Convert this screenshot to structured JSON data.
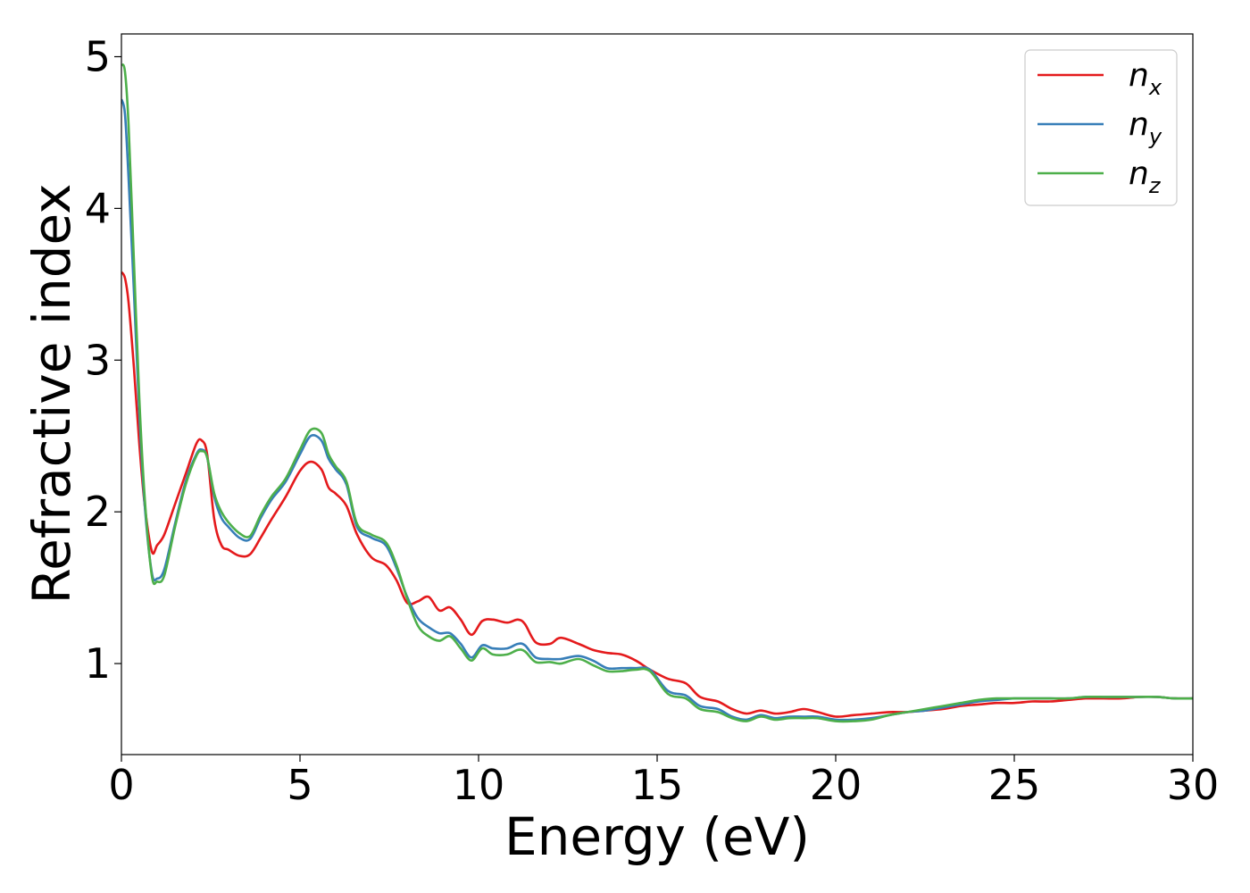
{
  "chart_data": {
    "type": "line",
    "xlabel": "Energy (eV)",
    "ylabel": "Refractive index",
    "xlim": [
      0,
      30
    ],
    "ylim": [
      0.4,
      5.15
    ],
    "xticks": [
      0,
      5,
      10,
      15,
      20,
      25,
      30
    ],
    "yticks": [
      1,
      2,
      3,
      4,
      5
    ],
    "grid": false,
    "legend_position": "top-right",
    "series": [
      {
        "name": "n",
        "subscript": "x",
        "color": "#e41a1c",
        "x": [
          0,
          0.1,
          0.2,
          0.35,
          0.5,
          0.65,
          0.85,
          1.0,
          1.2,
          1.5,
          1.8,
          2.1,
          2.25,
          2.4,
          2.6,
          2.8,
          3.0,
          3.3,
          3.6,
          3.9,
          4.2,
          4.6,
          5.0,
          5.3,
          5.6,
          5.8,
          6.0,
          6.3,
          6.6,
          7.0,
          7.4,
          7.7,
          8.0,
          8.3,
          8.6,
          8.9,
          9.2,
          9.5,
          9.8,
          10.1,
          10.4,
          10.8,
          11.1,
          11.3,
          11.6,
          12.0,
          12.3,
          12.8,
          13.2,
          13.6,
          14.0,
          14.4,
          14.8,
          15.3,
          15.8,
          16.2,
          16.7,
          17.1,
          17.5,
          17.9,
          18.3,
          18.7,
          19.1,
          19.5,
          20.0,
          20.5,
          21.0,
          21.5,
          22.0,
          22.5,
          23.0,
          23.5,
          24.0,
          24.5,
          25.0,
          25.5,
          26.0,
          26.5,
          27.0,
          27.5,
          28.0,
          28.5,
          29.0,
          29.5,
          30.0
        ],
        "y": [
          3.58,
          3.54,
          3.38,
          2.95,
          2.45,
          2.05,
          1.74,
          1.78,
          1.85,
          2.05,
          2.25,
          2.45,
          2.47,
          2.38,
          1.95,
          1.78,
          1.75,
          1.71,
          1.72,
          1.83,
          1.95,
          2.1,
          2.27,
          2.33,
          2.28,
          2.16,
          2.12,
          2.04,
          1.85,
          1.7,
          1.65,
          1.55,
          1.4,
          1.41,
          1.44,
          1.35,
          1.37,
          1.29,
          1.19,
          1.28,
          1.29,
          1.27,
          1.29,
          1.26,
          1.14,
          1.13,
          1.17,
          1.13,
          1.09,
          1.07,
          1.06,
          1.02,
          0.96,
          0.9,
          0.87,
          0.78,
          0.75,
          0.7,
          0.67,
          0.69,
          0.67,
          0.68,
          0.7,
          0.68,
          0.65,
          0.66,
          0.67,
          0.68,
          0.68,
          0.69,
          0.7,
          0.72,
          0.73,
          0.74,
          0.74,
          0.75,
          0.75,
          0.76,
          0.77,
          0.77,
          0.77,
          0.78,
          0.78,
          0.77,
          0.77
        ]
      },
      {
        "name": "n",
        "subscript": "y",
        "color": "#377eb8",
        "x": [
          0,
          0.1,
          0.2,
          0.35,
          0.5,
          0.65,
          0.85,
          1.0,
          1.2,
          1.5,
          1.8,
          2.1,
          2.25,
          2.4,
          2.6,
          2.8,
          3.0,
          3.3,
          3.6,
          3.9,
          4.2,
          4.6,
          5.0,
          5.3,
          5.6,
          5.8,
          6.0,
          6.3,
          6.6,
          7.0,
          7.4,
          7.7,
          8.0,
          8.3,
          8.6,
          8.9,
          9.2,
          9.5,
          9.8,
          10.1,
          10.4,
          10.8,
          11.1,
          11.3,
          11.6,
          12.0,
          12.3,
          12.8,
          13.2,
          13.6,
          14.0,
          14.4,
          14.8,
          15.3,
          15.8,
          16.2,
          16.7,
          17.1,
          17.5,
          17.9,
          18.3,
          18.7,
          19.1,
          19.5,
          20.0,
          20.5,
          21.0,
          21.5,
          22.0,
          22.5,
          23.0,
          23.5,
          24.0,
          24.5,
          25.0,
          25.5,
          26.0,
          26.5,
          27.0,
          27.5,
          28.0,
          28.5,
          29.0,
          29.5,
          30.0
        ],
        "y": [
          4.72,
          4.62,
          4.2,
          3.45,
          2.65,
          2.05,
          1.6,
          1.56,
          1.62,
          1.92,
          2.2,
          2.38,
          2.41,
          2.36,
          2.1,
          1.96,
          1.9,
          1.83,
          1.82,
          1.96,
          2.08,
          2.2,
          2.38,
          2.5,
          2.47,
          2.35,
          2.28,
          2.18,
          1.9,
          1.83,
          1.78,
          1.63,
          1.44,
          1.3,
          1.24,
          1.2,
          1.2,
          1.13,
          1.04,
          1.12,
          1.1,
          1.1,
          1.13,
          1.12,
          1.04,
          1.03,
          1.03,
          1.05,
          1.02,
          0.97,
          0.97,
          0.97,
          0.96,
          0.82,
          0.79,
          0.72,
          0.7,
          0.65,
          0.63,
          0.66,
          0.64,
          0.65,
          0.65,
          0.65,
          0.63,
          0.63,
          0.64,
          0.66,
          0.68,
          0.69,
          0.71,
          0.73,
          0.75,
          0.76,
          0.77,
          0.77,
          0.77,
          0.77,
          0.78,
          0.78,
          0.78,
          0.78,
          0.78,
          0.77,
          0.77
        ]
      },
      {
        "name": "n",
        "subscript": "z",
        "color": "#4daf4a",
        "x": [
          0,
          0.1,
          0.2,
          0.35,
          0.5,
          0.65,
          0.85,
          1.0,
          1.2,
          1.5,
          1.8,
          2.1,
          2.25,
          2.4,
          2.6,
          2.8,
          3.0,
          3.3,
          3.6,
          3.9,
          4.2,
          4.6,
          5.0,
          5.3,
          5.6,
          5.8,
          6.0,
          6.3,
          6.6,
          7.0,
          7.4,
          7.7,
          8.0,
          8.3,
          8.6,
          8.9,
          9.2,
          9.5,
          9.8,
          10.1,
          10.4,
          10.8,
          11.1,
          11.3,
          11.6,
          12.0,
          12.3,
          12.8,
          13.2,
          13.6,
          14.0,
          14.4,
          14.8,
          15.3,
          15.8,
          16.2,
          16.7,
          17.1,
          17.5,
          17.9,
          18.3,
          18.7,
          19.1,
          19.5,
          20.0,
          20.5,
          21.0,
          21.5,
          22.0,
          22.5,
          23.0,
          23.5,
          24.0,
          24.5,
          25.0,
          25.5,
          26.0,
          26.5,
          27.0,
          27.5,
          28.0,
          28.5,
          29.0,
          29.5,
          30.0
        ],
        "y": [
          4.95,
          4.9,
          4.55,
          3.65,
          2.75,
          2.1,
          1.58,
          1.54,
          1.58,
          1.9,
          2.18,
          2.37,
          2.4,
          2.36,
          2.12,
          2.0,
          1.93,
          1.86,
          1.84,
          1.98,
          2.1,
          2.22,
          2.41,
          2.54,
          2.52,
          2.38,
          2.3,
          2.2,
          1.92,
          1.85,
          1.8,
          1.65,
          1.43,
          1.25,
          1.18,
          1.15,
          1.18,
          1.1,
          1.02,
          1.1,
          1.06,
          1.06,
          1.09,
          1.08,
          1.01,
          1.01,
          1.0,
          1.03,
          0.99,
          0.95,
          0.95,
          0.96,
          0.95,
          0.8,
          0.77,
          0.7,
          0.68,
          0.64,
          0.62,
          0.65,
          0.63,
          0.64,
          0.64,
          0.64,
          0.62,
          0.62,
          0.63,
          0.66,
          0.68,
          0.7,
          0.72,
          0.74,
          0.76,
          0.77,
          0.77,
          0.77,
          0.77,
          0.77,
          0.78,
          0.78,
          0.78,
          0.78,
          0.78,
          0.77,
          0.77
        ]
      }
    ]
  }
}
